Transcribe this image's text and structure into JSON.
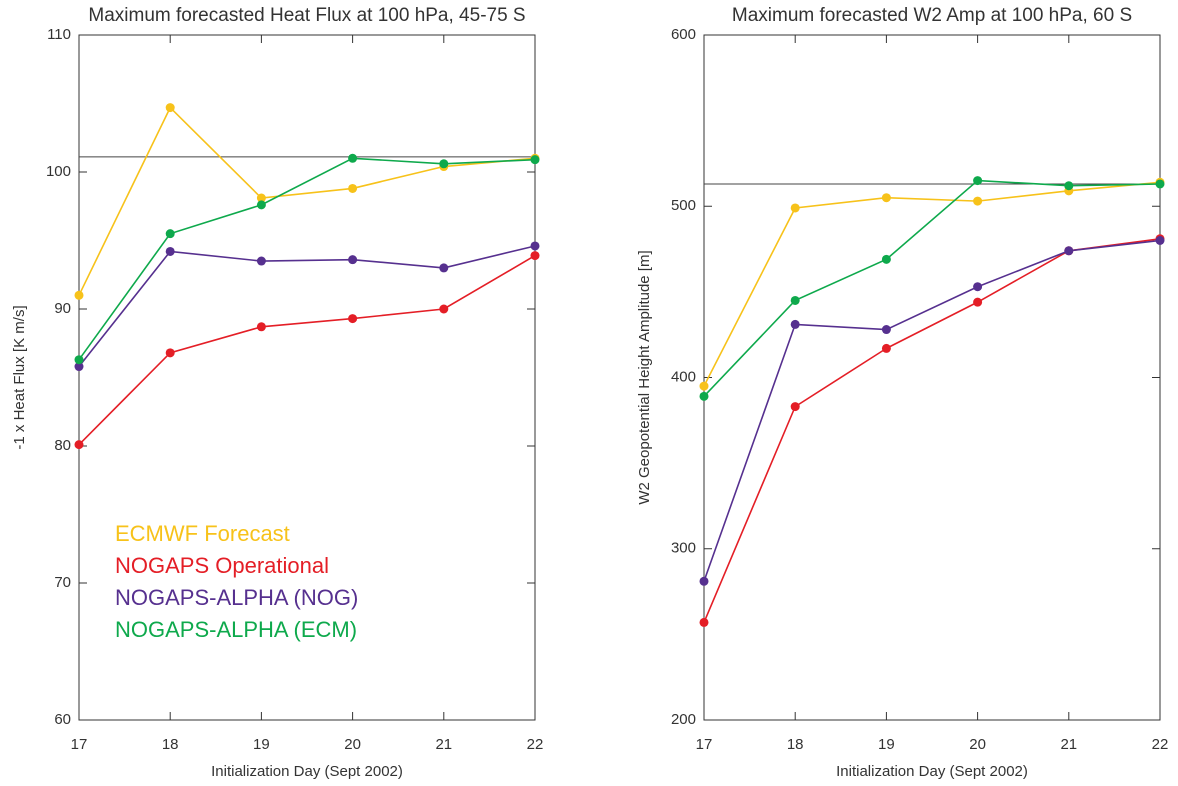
{
  "chart_data": [
    {
      "type": "line",
      "title": "Maximum forecasted Heat Flux at 100 hPa, 45-75 S",
      "xlabel": "Initialization Day (Sept 2002)",
      "ylabel": "-1 x Heat Flux [K m/s]",
      "x": [
        17,
        18,
        19,
        20,
        21,
        22
      ],
      "xlim": [
        17,
        22
      ],
      "xticks": [
        17,
        18,
        19,
        20,
        21,
        22
      ],
      "ylim": [
        60,
        110
      ],
      "yticks": [
        60,
        70,
        80,
        90,
        100,
        110
      ],
      "hline": 101.1,
      "legend": "lower left",
      "series": [
        {
          "name": "ECMWF Forecast",
          "color": "#f7c21a",
          "values": [
            91.0,
            104.7,
            98.1,
            98.8,
            100.4,
            101.0
          ]
        },
        {
          "name": "NOGAPS Operational",
          "color": "#e41e26",
          "values": [
            80.1,
            86.8,
            88.7,
            89.3,
            90.0,
            93.9
          ]
        },
        {
          "name": "NOGAPS-ALPHA (NOG)",
          "color": "#56308f",
          "values": [
            85.8,
            94.2,
            93.5,
            93.6,
            93.0,
            94.6
          ]
        },
        {
          "name": "NOGAPS-ALPHA (ECM)",
          "color": "#0ea94c",
          "values": [
            86.3,
            95.5,
            97.6,
            101.0,
            100.6,
            100.9
          ]
        }
      ]
    },
    {
      "type": "line",
      "title": "Maximum forecasted W2 Amp at 100 hPa, 60 S",
      "xlabel": "Initialization Day (Sept 2002)",
      "ylabel": "W2 Geopotential Height Amplitude [m]",
      "x": [
        17,
        18,
        19,
        20,
        21,
        22
      ],
      "xlim": [
        17,
        22
      ],
      "xticks": [
        17,
        18,
        19,
        20,
        21,
        22
      ],
      "ylim": [
        200,
        600
      ],
      "yticks": [
        200,
        300,
        400,
        500,
        600
      ],
      "hline": 513,
      "series": [
        {
          "color": "#f7c21a",
          "values": [
            395,
            499,
            505,
            503,
            509,
            514
          ]
        },
        {
          "color": "#e41e26",
          "values": [
            257,
            383,
            417,
            444,
            474,
            481
          ]
        },
        {
          "color": "#56308f",
          "values": [
            281,
            431,
            428,
            453,
            474,
            480
          ]
        },
        {
          "color": "#0ea94c",
          "values": [
            389,
            445,
            469,
            515,
            512,
            513
          ]
        }
      ]
    }
  ]
}
